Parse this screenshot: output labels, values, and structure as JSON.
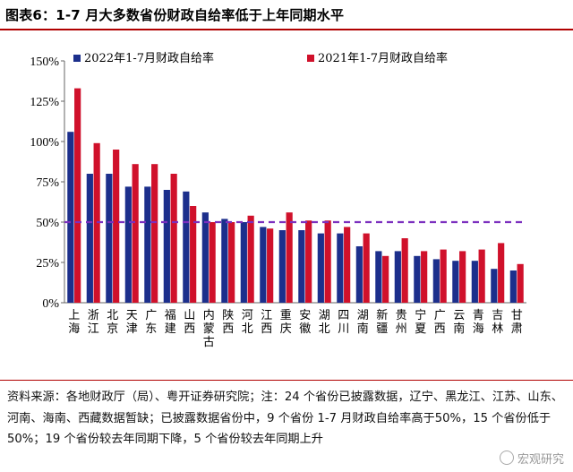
{
  "title": "图表6：1-7 月大多数省份财政自给率低于上年同期水平",
  "note": "资料来源：各地财政厅（局）、粤开证券研究院；注：24 个省份已披露数据，辽宁、黑龙江、江苏、山东、河南、海南、西藏数据暂缺；已披露数据省份中，9 个省份 1-7 月财政自给率高于50%，15 个省份低于50%；19 个省份较去年同期下降，5 个省份较去年同期上升",
  "watermark": "宏观研究",
  "colors": {
    "series2022": "#1c2f8c",
    "series2021": "#d0112b",
    "refline": "#7b2fbe"
  },
  "chart_data": {
    "type": "bar",
    "categories": [
      "上海",
      "浙江",
      "北京",
      "天津",
      "广东",
      "福建",
      "山西",
      "内蒙古",
      "陕西",
      "河北",
      "江西",
      "重庆",
      "安徽",
      "湖北",
      "四川",
      "湖南",
      "新疆",
      "贵州",
      "宁夏",
      "广西",
      "云南",
      "青海",
      "吉林",
      "甘肃"
    ],
    "series": [
      {
        "name": "2022年1-7月财政自给率",
        "values": [
          106,
          80,
          80,
          72,
          72,
          70,
          69,
          56,
          52,
          50,
          47,
          45,
          45,
          43,
          43,
          35,
          32,
          32,
          29,
          27,
          26,
          26,
          21,
          20
        ]
      },
      {
        "name": "2021年1-7月财政自给率",
        "values": [
          133,
          99,
          95,
          86,
          86,
          80,
          60,
          50,
          50,
          54,
          46,
          56,
          51,
          51,
          47,
          43,
          29,
          40,
          32,
          33,
          32,
          33,
          37,
          24
        ]
      }
    ],
    "reference_line": 50,
    "ylim": [
      0,
      150
    ],
    "yticks": [
      "0%",
      "25%",
      "50%",
      "75%",
      "100%",
      "125%",
      "150%"
    ],
    "legend": "top"
  }
}
